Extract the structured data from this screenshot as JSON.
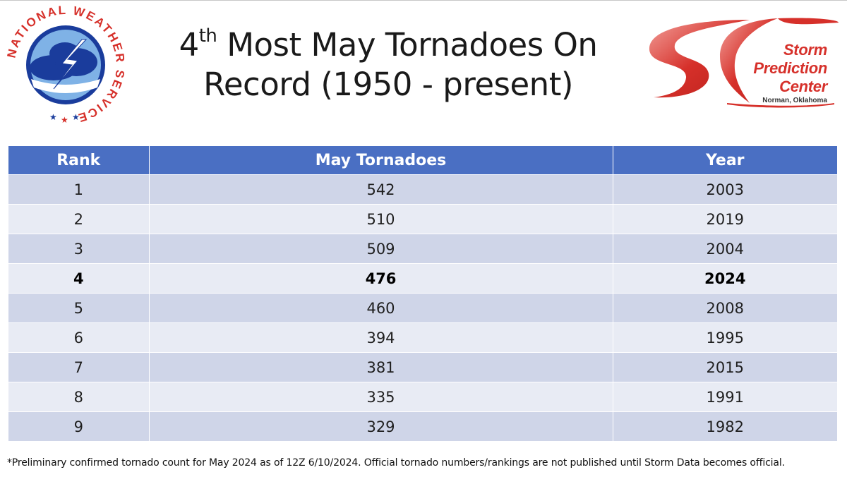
{
  "header": {
    "title_number": "4",
    "title_superscript": "th",
    "title_line1_rest": " Most May Tornadoes On",
    "title_line2": "Record (1950 - present)"
  },
  "logos": {
    "nws": {
      "ring_text": "NATIONAL WEATHER SERVICE",
      "icon": "nws-lightning-cloud-emblem"
    },
    "spc": {
      "line1": "Storm",
      "line2": "Prediction",
      "line3": "Center",
      "location": "Norman, Oklahoma",
      "icon": "spc-swoosh-emblem"
    }
  },
  "colors": {
    "header_bg": "#4a6fc3",
    "row_odd": "#cfd5e8",
    "row_even": "#e8ebf4",
    "spc_red": "#d6302a",
    "nws_blue": "#1a3c9c"
  },
  "table": {
    "columns": [
      "Rank",
      "May Tornadoes",
      "Year"
    ],
    "rows": [
      {
        "rank": "1",
        "count": "542",
        "year": "2003"
      },
      {
        "rank": "2",
        "count": "510",
        "year": "2019"
      },
      {
        "rank": "3",
        "count": "509",
        "year": "2004"
      },
      {
        "rank": "4",
        "count": "476",
        "year": "2024",
        "highlight": true
      },
      {
        "rank": "5",
        "count": "460",
        "year": "2008"
      },
      {
        "rank": "6",
        "count": "394",
        "year": "1995"
      },
      {
        "rank": "7",
        "count": "381",
        "year": "2015"
      },
      {
        "rank": "8",
        "count": "335",
        "year": "1991"
      },
      {
        "rank": "9",
        "count": "329",
        "year": "1982"
      }
    ]
  },
  "footnote": "*Preliminary confirmed tornado count for May 2024 as of 12Z 6/10/2024. Official tornado numbers/rankings are not published until Storm Data becomes official."
}
